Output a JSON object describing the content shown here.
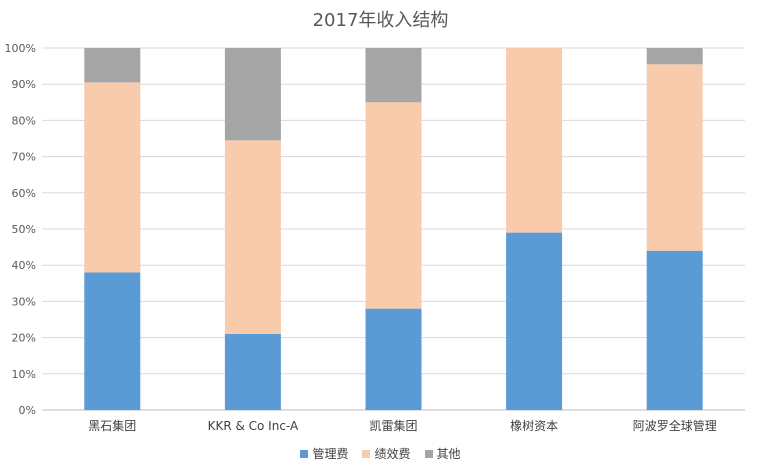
{
  "chart_data": {
    "type": "bar",
    "stacked": "percent",
    "title": "2017年收入结构",
    "categories": [
      "黑石集团",
      "KKR & Co Inc-A",
      "凯雷集团",
      "橡树资本",
      "阿波罗全球管理"
    ],
    "series": [
      {
        "name": "管理费",
        "color": "#5B9BD5",
        "values": [
          38,
          21,
          28,
          49,
          44
        ]
      },
      {
        "name": "绩效费",
        "color": "#F8CBAD",
        "values": [
          52.5,
          53.5,
          57,
          51,
          51.5
        ]
      },
      {
        "name": "其他",
        "color": "#A5A5A5",
        "values": [
          9.5,
          25.5,
          15,
          0,
          4.5
        ]
      }
    ],
    "yticks": [
      "0%",
      "10%",
      "20%",
      "30%",
      "40%",
      "50%",
      "60%",
      "70%",
      "80%",
      "90%",
      "100%"
    ],
    "ylim": [
      0,
      100
    ],
    "grid": true,
    "legend": "bottom"
  }
}
